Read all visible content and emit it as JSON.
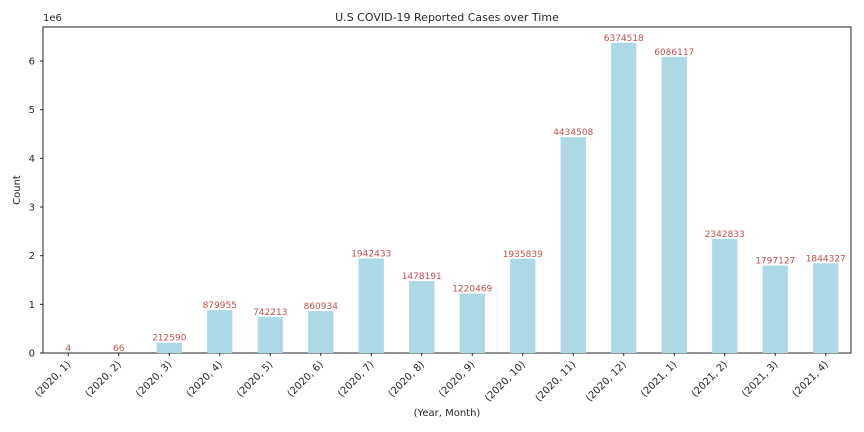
{
  "chart_data": {
    "type": "bar",
    "title": "U.S COVID-19 Reported Cases over Time",
    "xlabel": "(Year, Month)",
    "ylabel": "Count",
    "y_scale_note": "1e6",
    "categories": [
      "(2020, 1)",
      "(2020, 2)",
      "(2020, 3)",
      "(2020, 4)",
      "(2020, 5)",
      "(2020, 6)",
      "(2020, 7)",
      "(2020, 8)",
      "(2020, 9)",
      "(2020, 10)",
      "(2020, 11)",
      "(2020, 12)",
      "(2021, 1)",
      "(2021, 2)",
      "(2021, 3)",
      "(2021, 4)"
    ],
    "values": [
      4,
      66,
      212590,
      879955,
      742213,
      860934,
      1942433,
      1478191,
      1220469,
      1935839,
      4434508,
      6374518,
      6086117,
      2342833,
      1797127,
      1844327
    ],
    "data_labels": [
      "4",
      "66",
      "212590",
      "879955",
      "742213",
      "860934",
      "1942433",
      "1478191",
      "1220469",
      "1935839",
      "4434508",
      "6374518",
      "6086117",
      "2342833",
      "1797127",
      "1844327"
    ],
    "ylim": [
      0,
      6700000
    ],
    "yticks": [
      0,
      1000000,
      2000000,
      3000000,
      4000000,
      5000000,
      6000000
    ],
    "ytick_labels": [
      "0",
      "1",
      "2",
      "3",
      "4",
      "5",
      "6"
    ],
    "grid": false,
    "colors": {
      "bar": "#add8e6",
      "label": "#c0504d",
      "axis": "#262626"
    }
  }
}
